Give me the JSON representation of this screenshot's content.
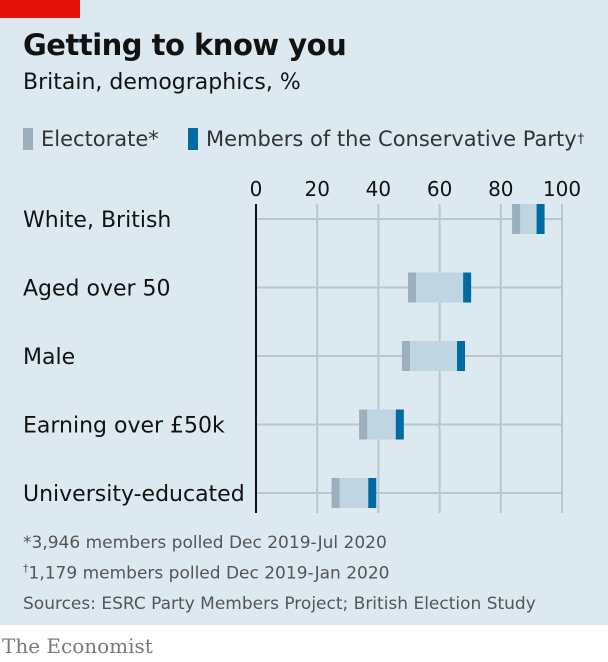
{
  "header": {
    "title": "Getting to know you",
    "subtitle": "Britain, demographics, %"
  },
  "legend": {
    "electorate_label": "Electorate*",
    "members_label": "Members of the Conservative Party",
    "members_mark": "†"
  },
  "colors": {
    "background": "#dde9f0",
    "electorate": "#9dafbd",
    "members": "#006ba2",
    "range": "#c0d5e2",
    "brand_red": "#e3120b"
  },
  "chart_data": {
    "type": "dot-range",
    "title": "Getting to know you",
    "subtitle": "Britain, demographics, %",
    "xlim": [
      0,
      100
    ],
    "ticks": [
      "0",
      "20",
      "40",
      "60",
      "80",
      "100"
    ],
    "tick_values": [
      0,
      20,
      40,
      60,
      80,
      100
    ],
    "categories": [
      "White, British",
      "Aged over 50",
      "Male",
      "Earning over £50k",
      "University-educated"
    ],
    "series": [
      {
        "name": "Electorate*",
        "values": [
          85,
          51,
          49,
          35,
          26
        ]
      },
      {
        "name": "Members of the Conservative Party†",
        "values": [
          93,
          69,
          67,
          47,
          38
        ]
      }
    ],
    "legend_position": "top-left",
    "grid": true
  },
  "footnotes": {
    "note1": "*3,946 members polled Dec 2019-Jul 2020",
    "note2_mark": "†",
    "note2": "1,179 members polled Dec 2019-Jan 2020",
    "source": "Sources: ESRC Party Members Project; British Election Study"
  },
  "brand": "The Economist"
}
